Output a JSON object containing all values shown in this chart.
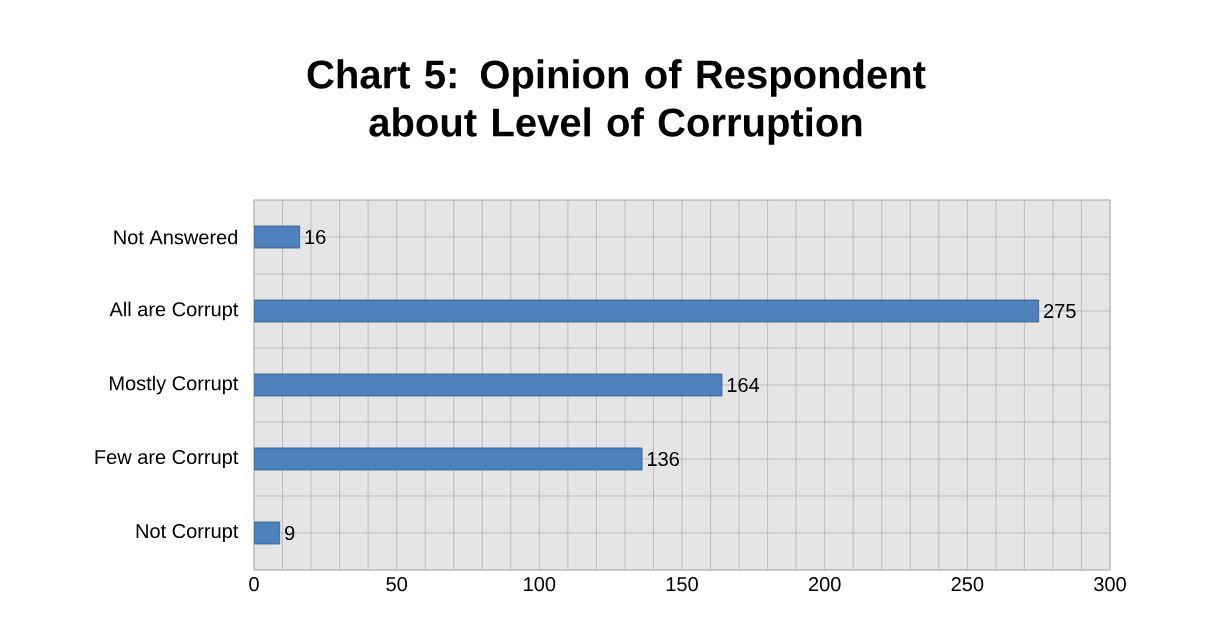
{
  "chart_data": {
    "type": "bar",
    "orientation": "horizontal",
    "title": "Chart 5: Opinion of Respondent about Level of Corruption",
    "categories": [
      "Not Answered",
      "All are Corrupt",
      "Mostly Corrupt",
      "Few are Corrupt",
      "Not Corrupt"
    ],
    "values": [
      16,
      275,
      164,
      136,
      9
    ],
    "color": "#4f81bd",
    "xlim": [
      0,
      300
    ],
    "xticks": [
      0,
      50,
      100,
      150,
      200,
      250,
      300
    ],
    "grid": true,
    "data_labels": true
  }
}
